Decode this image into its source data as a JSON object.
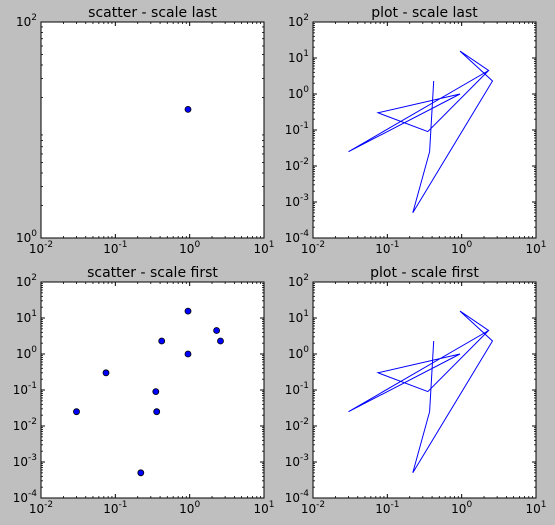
{
  "figure": {
    "background": "#bfbfbf",
    "axes_background": "#ffffff",
    "line_color": "#0000ff",
    "marker_color": "#0000ff"
  },
  "chart_data": [
    {
      "type": "scatter",
      "title": "scatter - scale last",
      "xscale": "log",
      "yscale": "log",
      "xlim": [
        0.01,
        10
      ],
      "ylim": [
        1,
        100
      ],
      "xticks": [
        {
          "v": 0.01,
          "base": "10",
          "exp": "-2"
        },
        {
          "v": 0.1,
          "base": "10",
          "exp": "-1"
        },
        {
          "v": 1,
          "base": "10",
          "exp": "0"
        },
        {
          "v": 10,
          "base": "10",
          "exp": "1"
        }
      ],
      "yticks": [
        {
          "v": 1,
          "base": "10",
          "exp": "0"
        },
        {
          "v": 100,
          "base": "10",
          "exp": "2"
        }
      ],
      "points": [
        [
          0.95,
          15.5
        ]
      ]
    },
    {
      "type": "line",
      "title": "plot - scale last",
      "xscale": "log",
      "yscale": "log",
      "xlim": [
        0.01,
        10
      ],
      "ylim": [
        0.0001,
        100
      ],
      "xticks": [
        {
          "v": 0.01,
          "base": "10",
          "exp": "-2"
        },
        {
          "v": 0.1,
          "base": "10",
          "exp": "-1"
        },
        {
          "v": 1,
          "base": "10",
          "exp": "0"
        },
        {
          "v": 10,
          "base": "10",
          "exp": "1"
        }
      ],
      "yticks": [
        {
          "v": 0.0001,
          "base": "10",
          "exp": "-4"
        },
        {
          "v": 0.001,
          "base": "10",
          "exp": "-3"
        },
        {
          "v": 0.01,
          "base": "10",
          "exp": "-2"
        },
        {
          "v": 0.1,
          "base": "10",
          "exp": "-1"
        },
        {
          "v": 1,
          "base": "10",
          "exp": "0"
        },
        {
          "v": 10,
          "base": "10",
          "exp": "1"
        },
        {
          "v": 100,
          "base": "10",
          "exp": "2"
        }
      ],
      "points": [
        [
          0.42,
          2.3
        ],
        [
          0.37,
          0.025
        ],
        [
          0.22,
          0.0005
        ],
        [
          2.6,
          2.3
        ],
        [
          0.95,
          15.5
        ],
        [
          2.3,
          4.5
        ],
        [
          0.03,
          0.025
        ],
        [
          0.95,
          1.0
        ],
        [
          0.075,
          0.3
        ],
        [
          0.35,
          0.09
        ],
        [
          2.3,
          4.5
        ]
      ]
    },
    {
      "type": "scatter",
      "title": "scatter - scale first",
      "xscale": "log",
      "yscale": "log",
      "xlim": [
        0.01,
        10
      ],
      "ylim": [
        0.0001,
        100
      ],
      "xticks": [
        {
          "v": 0.01,
          "base": "10",
          "exp": "-2"
        },
        {
          "v": 0.1,
          "base": "10",
          "exp": "-1"
        },
        {
          "v": 1,
          "base": "10",
          "exp": "0"
        },
        {
          "v": 10,
          "base": "10",
          "exp": "1"
        }
      ],
      "yticks": [
        {
          "v": 0.0001,
          "base": "10",
          "exp": "-4"
        },
        {
          "v": 0.001,
          "base": "10",
          "exp": "-3"
        },
        {
          "v": 0.01,
          "base": "10",
          "exp": "-2"
        },
        {
          "v": 0.1,
          "base": "10",
          "exp": "-1"
        },
        {
          "v": 1,
          "base": "10",
          "exp": "0"
        },
        {
          "v": 10,
          "base": "10",
          "exp": "1"
        },
        {
          "v": 100,
          "base": "10",
          "exp": "2"
        }
      ],
      "points": [
        [
          0.03,
          0.025
        ],
        [
          0.075,
          0.3
        ],
        [
          0.22,
          0.0005
        ],
        [
          0.35,
          0.09
        ],
        [
          0.36,
          0.025
        ],
        [
          0.42,
          2.3
        ],
        [
          0.95,
          15.5
        ],
        [
          0.95,
          1.0
        ],
        [
          2.3,
          4.5
        ],
        [
          2.6,
          2.3
        ]
      ]
    },
    {
      "type": "line",
      "title": "plot - scale first",
      "xscale": "log",
      "yscale": "log",
      "xlim": [
        0.01,
        10
      ],
      "ylim": [
        0.0001,
        100
      ],
      "xticks": [
        {
          "v": 0.01,
          "base": "10",
          "exp": "-2"
        },
        {
          "v": 0.1,
          "base": "10",
          "exp": "-1"
        },
        {
          "v": 1,
          "base": "10",
          "exp": "0"
        },
        {
          "v": 10,
          "base": "10",
          "exp": "1"
        }
      ],
      "yticks": [
        {
          "v": 0.0001,
          "base": "10",
          "exp": "-4"
        },
        {
          "v": 0.001,
          "base": "10",
          "exp": "-3"
        },
        {
          "v": 0.01,
          "base": "10",
          "exp": "-2"
        },
        {
          "v": 0.1,
          "base": "10",
          "exp": "-1"
        },
        {
          "v": 1,
          "base": "10",
          "exp": "0"
        },
        {
          "v": 10,
          "base": "10",
          "exp": "1"
        },
        {
          "v": 100,
          "base": "10",
          "exp": "2"
        }
      ],
      "points": [
        [
          0.42,
          2.3
        ],
        [
          0.37,
          0.025
        ],
        [
          0.22,
          0.0005
        ],
        [
          2.6,
          2.3
        ],
        [
          0.95,
          15.5
        ],
        [
          2.3,
          4.5
        ],
        [
          0.03,
          0.025
        ],
        [
          0.95,
          1.0
        ],
        [
          0.075,
          0.3
        ],
        [
          0.35,
          0.09
        ],
        [
          2.3,
          4.5
        ]
      ]
    }
  ]
}
